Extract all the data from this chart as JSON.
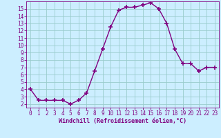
{
  "x": [
    0,
    1,
    2,
    3,
    4,
    5,
    6,
    7,
    8,
    9,
    10,
    11,
    12,
    13,
    14,
    15,
    16,
    17,
    18,
    19,
    20,
    21,
    22,
    23
  ],
  "y": [
    4.0,
    2.5,
    2.5,
    2.5,
    2.5,
    2.0,
    2.5,
    3.5,
    6.5,
    9.5,
    12.5,
    14.8,
    15.2,
    15.2,
    15.5,
    15.8,
    15.0,
    13.0,
    9.5,
    7.5,
    7.5,
    6.5,
    7.0,
    7.0
  ],
  "line_color": "#800080",
  "marker": "+",
  "marker_size": 4,
  "marker_lw": 1.2,
  "bg_color": "#cceeff",
  "grid_color": "#99cccc",
  "xlabel": "Windchill (Refroidissement éolien,°C)",
  "xlabel_color": "#800080",
  "tick_color": "#800080",
  "xlim": [
    -0.5,
    23.5
  ],
  "ylim": [
    1.5,
    16.0
  ],
  "yticks": [
    2,
    3,
    4,
    5,
    6,
    7,
    8,
    9,
    10,
    11,
    12,
    13,
    14,
    15
  ],
  "xticks": [
    0,
    1,
    2,
    3,
    4,
    5,
    6,
    7,
    8,
    9,
    10,
    11,
    12,
    13,
    14,
    15,
    16,
    17,
    18,
    19,
    20,
    21,
    22,
    23
  ],
  "line_width": 1.0,
  "tick_fontsize": 5.5,
  "xlabel_fontsize": 6.0
}
